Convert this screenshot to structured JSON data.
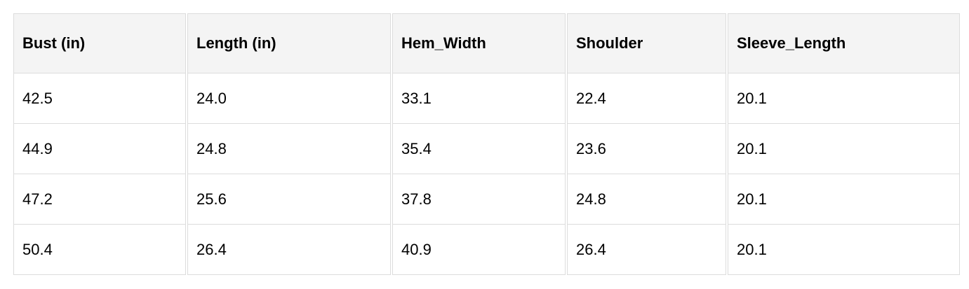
{
  "table": {
    "headers": [
      "Bust (in)",
      "Length (in)",
      "Hem_Width",
      "Shoulder",
      "Sleeve_Length"
    ],
    "rows": [
      [
        "42.5",
        "24.0",
        "33.1",
        "22.4",
        "20.1"
      ],
      [
        "44.9",
        "24.8",
        "35.4",
        "23.6",
        "20.1"
      ],
      [
        "47.2",
        "25.6",
        "37.8",
        "24.8",
        "20.1"
      ],
      [
        "50.4",
        "26.4",
        "40.9",
        "26.4",
        "20.1"
      ]
    ]
  },
  "colors": {
    "header_bg": "#f4f4f4",
    "border": "#dcdcdc"
  }
}
